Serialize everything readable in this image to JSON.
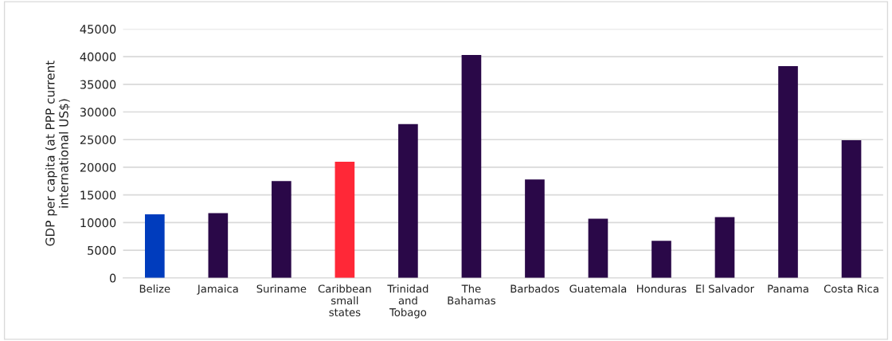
{
  "chart_data": {
    "type": "bar",
    "ylabel": "GDP per capita (at PPP current\ninternational US$)",
    "categories": [
      "Belize",
      "Jamaica",
      "Suriname",
      "Caribbean\nsmall\nstates",
      "Trinidad\nand\nTobago",
      "The\nBahamas",
      "Barbados",
      "Guatemala",
      "Honduras",
      "El Salvador",
      "Panama",
      "Costa Rica"
    ],
    "values": [
      11500,
      11700,
      17500,
      21000,
      27800,
      40300,
      17800,
      10700,
      6700,
      11000,
      38300,
      24900
    ],
    "colors": [
      "#003cbd",
      "#2a0848",
      "#2a0848",
      "#ff2837",
      "#2a0848",
      "#2a0848",
      "#2a0848",
      "#2a0848",
      "#2a0848",
      "#2a0848",
      "#2a0848",
      "#2a0848"
    ],
    "ylim": [
      0,
      45000
    ],
    "yticks": [
      0,
      5000,
      10000,
      15000,
      20000,
      25000,
      30000,
      35000,
      40000,
      45000
    ],
    "grid": "y"
  }
}
